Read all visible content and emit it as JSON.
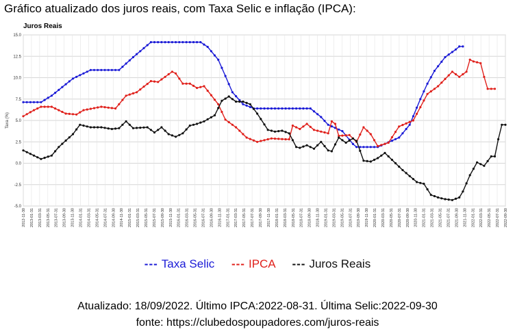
{
  "heading": "Gráfico atualizado dos juros reais, com Taxa Selic e inflação (IPCA):",
  "chart_data": {
    "type": "line",
    "title": "Juros Reais",
    "xlabel": "",
    "ylabel": "Taxa (%)",
    "ylim": [
      -5.0,
      15.0
    ],
    "yticks": [
      "15.0",
      "12.5",
      "10.0",
      "7.5",
      "5.0",
      "2.5",
      "0.0",
      "-2.5",
      "-5.0"
    ],
    "grid": true,
    "legend_position": "bottom",
    "x_tick_labels": [
      "2012-11-30",
      "2013-01-31",
      "2013-03-31",
      "2013-05-31",
      "2013-07-31",
      "2013-09-30",
      "2013-11-30",
      "2014-01-31",
      "2014-03-31",
      "2014-05-31",
      "2014-07-31",
      "2014-09-30",
      "2014-11-30",
      "2015-01-31",
      "2015-03-31",
      "2015-05-31",
      "2015-07-31",
      "2015-09-30",
      "2015-11-30",
      "2016-01-31",
      "2016-03-31",
      "2016-05-31",
      "2016-07-31",
      "2016-09-30",
      "2016-11-30",
      "2017-01-31",
      "2017-03-31",
      "2017-05-31",
      "2017-07-31",
      "2017-09-30",
      "2017-11-30",
      "2018-01-31",
      "2018-03-31",
      "2018-05-31",
      "2018-07-31",
      "2018-09-30",
      "2018-11-30",
      "2019-01-31",
      "2019-03-31",
      "2019-05-31",
      "2019-07-31",
      "2019-09-30",
      "2019-11-30",
      "2020-01-31",
      "2020-03-31",
      "2020-05-31",
      "2020-07-31",
      "2020-09-30",
      "2020-11-30",
      "2021-01-31",
      "2021-03-31",
      "2021-05-31",
      "2021-07-31",
      "2021-09-30",
      "2021-11-30",
      "2022-01-31",
      "2022-03-31",
      "2022-05-31",
      "2022-07-31",
      "2022-09-30"
    ],
    "series": [
      {
        "name": "Taxa Selic",
        "color": "#1a1ad6",
        "keypoints": [
          [
            0,
            7.14
          ],
          [
            5,
            7.14
          ],
          [
            8,
            7.9
          ],
          [
            14,
            9.9
          ],
          [
            19,
            10.9
          ],
          [
            27,
            10.9
          ],
          [
            31,
            12.4
          ],
          [
            36,
            14.15
          ],
          [
            50,
            14.15
          ],
          [
            52,
            13.6
          ],
          [
            55,
            12.1
          ],
          [
            57,
            10.2
          ],
          [
            59,
            8.3
          ],
          [
            62,
            6.9
          ],
          [
            65,
            6.4
          ],
          [
            81,
            6.4
          ],
          [
            84,
            5.4
          ],
          [
            86,
            4.5
          ],
          [
            90,
            3.75
          ],
          [
            93,
            2.25
          ],
          [
            94,
            1.9
          ],
          [
            100,
            1.9
          ],
          [
            106,
            3.0
          ],
          [
            109,
            4.5
          ],
          [
            112,
            7.5
          ],
          [
            114,
            9.3
          ],
          [
            116,
            10.8
          ],
          [
            119,
            12.4
          ],
          [
            122,
            13.3
          ],
          [
            123,
            13.65
          ],
          [
            124,
            13.65
          ]
        ]
      },
      {
        "name": "IPCA",
        "color": "#e0201b",
        "keypoints": [
          [
            0,
            5.5
          ],
          [
            3,
            6.2
          ],
          [
            5,
            6.6
          ],
          [
            8,
            6.6
          ],
          [
            12,
            5.8
          ],
          [
            15,
            5.7
          ],
          [
            17,
            6.2
          ],
          [
            22,
            6.6
          ],
          [
            26,
            6.4
          ],
          [
            29,
            7.9
          ],
          [
            32,
            8.3
          ],
          [
            36,
            9.6
          ],
          [
            38,
            9.5
          ],
          [
            42,
            10.7
          ],
          [
            43,
            10.5
          ],
          [
            45,
            9.3
          ],
          [
            47,
            9.3
          ],
          [
            49,
            8.8
          ],
          [
            51,
            9.0
          ],
          [
            55,
            6.9
          ],
          [
            57,
            5.1
          ],
          [
            60,
            4.2
          ],
          [
            63,
            3.0
          ],
          [
            66,
            2.5
          ],
          [
            70,
            2.9
          ],
          [
            74,
            2.8
          ],
          [
            75,
            2.8
          ],
          [
            76,
            4.4
          ],
          [
            78,
            4.0
          ],
          [
            80,
            4.6
          ],
          [
            82,
            3.9
          ],
          [
            86,
            3.5
          ],
          [
            87,
            4.9
          ],
          [
            88,
            4.6
          ],
          [
            89,
            3.2
          ],
          [
            92,
            3.3
          ],
          [
            94,
            2.5
          ],
          [
            96,
            4.2
          ],
          [
            98,
            3.4
          ],
          [
            100,
            2.0
          ],
          [
            103,
            2.4
          ],
          [
            106,
            4.3
          ],
          [
            110,
            5.0
          ],
          [
            114,
            8.1
          ],
          [
            117,
            9.0
          ],
          [
            121,
            10.7
          ],
          [
            123,
            10.1
          ],
          [
            125,
            10.7
          ],
          [
            126,
            12.1
          ],
          [
            127,
            11.9
          ],
          [
            129,
            11.7
          ],
          [
            130,
            10.1
          ],
          [
            131,
            8.7
          ],
          [
            133,
            8.7
          ]
        ]
      },
      {
        "name": "Juros Reais",
        "color": "#111111",
        "keypoints": [
          [
            0,
            1.5
          ],
          [
            3,
            0.9
          ],
          [
            5,
            0.5
          ],
          [
            8,
            0.9
          ],
          [
            10,
            1.9
          ],
          [
            14,
            3.4
          ],
          [
            16,
            4.5
          ],
          [
            19,
            4.2
          ],
          [
            22,
            4.2
          ],
          [
            25,
            4.0
          ],
          [
            27,
            4.1
          ],
          [
            29,
            4.9
          ],
          [
            31,
            4.1
          ],
          [
            35,
            4.2
          ],
          [
            37,
            3.6
          ],
          [
            39,
            4.2
          ],
          [
            41,
            3.4
          ],
          [
            43,
            3.1
          ],
          [
            45,
            3.5
          ],
          [
            47,
            4.4
          ],
          [
            49,
            4.6
          ],
          [
            51,
            4.9
          ],
          [
            54,
            5.6
          ],
          [
            56,
            7.3
          ],
          [
            58,
            7.8
          ],
          [
            60,
            7.2
          ],
          [
            62,
            7.2
          ],
          [
            64,
            6.9
          ],
          [
            66,
            5.8
          ],
          [
            69,
            3.9
          ],
          [
            71,
            3.7
          ],
          [
            73,
            3.8
          ],
          [
            75,
            3.5
          ],
          [
            77,
            1.9
          ],
          [
            78,
            1.8
          ],
          [
            80,
            2.1
          ],
          [
            82,
            1.7
          ],
          [
            84,
            2.5
          ],
          [
            86,
            1.5
          ],
          [
            87,
            1.4
          ],
          [
            89,
            3.0
          ],
          [
            91,
            2.4
          ],
          [
            93,
            2.9
          ],
          [
            94,
            2.6
          ],
          [
            96,
            0.3
          ],
          [
            98,
            0.2
          ],
          [
            100,
            0.6
          ],
          [
            102,
            1.2
          ],
          [
            104,
            0.4
          ],
          [
            107,
            -0.8
          ],
          [
            111,
            -2.2
          ],
          [
            113,
            -2.4
          ],
          [
            115,
            -3.7
          ],
          [
            117,
            -4.0
          ],
          [
            119,
            -4.2
          ],
          [
            121,
            -4.3
          ],
          [
            123,
            -4.0
          ],
          [
            124,
            -3.3
          ],
          [
            126,
            -1.4
          ],
          [
            128,
            0.1
          ],
          [
            130,
            -0.3
          ],
          [
            132,
            0.8
          ],
          [
            133,
            0.8
          ],
          [
            134,
            2.8
          ],
          [
            135,
            4.5
          ],
          [
            136,
            4.5
          ]
        ]
      }
    ]
  },
  "legend": {
    "items": [
      {
        "dash": "---",
        "label": "Taxa Selic",
        "color": "#1a1ad6"
      },
      {
        "dash": "---",
        "label": "IPCA",
        "color": "#e0201b"
      },
      {
        "dash": "---",
        "label": "Juros Reais",
        "color": "#111111"
      }
    ]
  },
  "footer": {
    "line1": "Atualizado: 18/09/2022. Último IPCA:2022-08-31. Última Selic:2022-09-30",
    "line2": "fonte: https://clubedospoupadores.com/juros-reais"
  }
}
